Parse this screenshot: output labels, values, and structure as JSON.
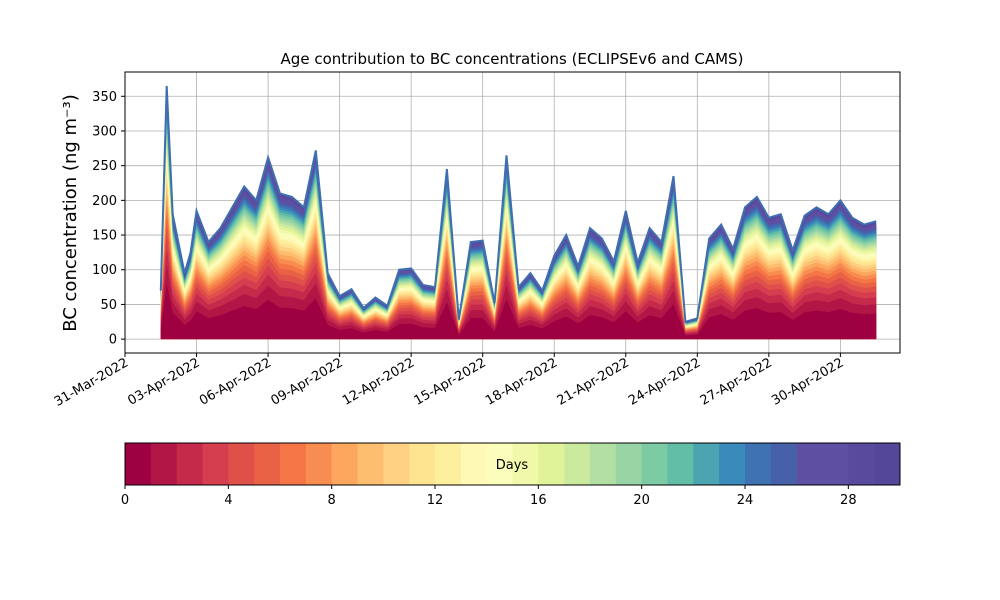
{
  "chart_data": {
    "type": "area",
    "stacked": true,
    "title": "Age contribution to BC concentrations (ECLIPSEv6 and CAMS)",
    "ylabel": "BC concentration (ng m⁻³)",
    "xlabel": "",
    "ylim": [
      -20,
      385
    ],
    "xlim": [
      "2022-03-31T00:00",
      "2022-05-02T12:00"
    ],
    "grid": true,
    "x_tick_labels": [
      "31-Mar-2022",
      "03-Apr-2022",
      "06-Apr-2022",
      "09-Apr-2022",
      "12-Apr-2022",
      "15-Apr-2022",
      "18-Apr-2022",
      "21-Apr-2022",
      "24-Apr-2022",
      "27-Apr-2022",
      "30-Apr-2022"
    ],
    "y_ticks": [
      0,
      50,
      100,
      150,
      200,
      250,
      300,
      350
    ],
    "x": [
      "2022-04-01T12:00",
      "2022-04-01T18:00",
      "2022-04-02T00:00",
      "2022-04-02T12:00",
      "2022-04-02T18:00",
      "2022-04-03T00:00",
      "2022-04-03T12:00",
      "2022-04-04T00:00",
      "2022-04-04T12:00",
      "2022-04-05T00:00",
      "2022-04-05T12:00",
      "2022-04-06T00:00",
      "2022-04-06T12:00",
      "2022-04-07T00:00",
      "2022-04-07T12:00",
      "2022-04-08T00:00",
      "2022-04-08T12:00",
      "2022-04-09T00:00",
      "2022-04-09T12:00",
      "2022-04-10T00:00",
      "2022-04-10T12:00",
      "2022-04-11T00:00",
      "2022-04-11T12:00",
      "2022-04-12T00:00",
      "2022-04-12T12:00",
      "2022-04-13T00:00",
      "2022-04-13T12:00",
      "2022-04-14T00:00",
      "2022-04-14T12:00",
      "2022-04-15T00:00",
      "2022-04-15T12:00",
      "2022-04-16T00:00",
      "2022-04-16T12:00",
      "2022-04-17T00:00",
      "2022-04-17T12:00",
      "2022-04-18T00:00",
      "2022-04-18T12:00",
      "2022-04-19T00:00",
      "2022-04-19T12:00",
      "2022-04-20T00:00",
      "2022-04-20T12:00",
      "2022-04-21T00:00",
      "2022-04-21T12:00",
      "2022-04-22T00:00",
      "2022-04-22T12:00",
      "2022-04-23T00:00",
      "2022-04-23T12:00",
      "2022-04-24T00:00",
      "2022-04-24T12:00",
      "2022-04-25T00:00",
      "2022-04-25T12:00",
      "2022-04-26T00:00",
      "2022-04-26T12:00",
      "2022-04-27T00:00",
      "2022-04-27T12:00",
      "2022-04-28T00:00",
      "2022-04-28T12:00",
      "2022-04-29T00:00",
      "2022-04-29T12:00",
      "2022-04-30T00:00",
      "2022-04-30T12:00",
      "2022-05-01T00:00",
      "2022-05-01T12:00"
    ],
    "total": [
      70,
      365,
      180,
      95,
      125,
      185,
      140,
      160,
      190,
      220,
      200,
      262,
      210,
      205,
      190,
      272,
      95,
      62,
      72,
      45,
      60,
      48,
      100,
      102,
      78,
      75,
      245,
      28,
      140,
      142,
      52,
      265,
      75,
      95,
      70,
      120,
      150,
      105,
      160,
      145,
      112,
      185,
      110,
      160,
      140,
      235,
      25,
      30,
      145,
      165,
      130,
      190,
      205,
      175,
      180,
      128,
      178,
      190,
      180,
      200,
      175,
      165,
      170
    ],
    "colorbar": {
      "label": "Days",
      "ticks": [
        0,
        4,
        8,
        12,
        16,
        20,
        24,
        28
      ],
      "range": [
        0,
        30
      ],
      "colors": [
        "#9e0142",
        "#b21646",
        "#c52a4b",
        "#d53e4f",
        "#e0504a",
        "#ea6245",
        "#f57547",
        "#f88d52",
        "#fca75d",
        "#fdbe70",
        "#fed081",
        "#fee391",
        "#feef9f",
        "#fff9b6",
        "#fbfdba",
        "#f0f8a9",
        "#e1f399",
        "#ccea9e",
        "#b2dfa2",
        "#99d5a4",
        "#7ccba5",
        "#62bea6",
        "#4ba4b0",
        "#3a8bbb",
        "#3f72b2",
        "#4661aa",
        "#5e4fa2",
        "#5e4fa2",
        "#5a4a9e",
        "#54479a"
      ]
    }
  }
}
